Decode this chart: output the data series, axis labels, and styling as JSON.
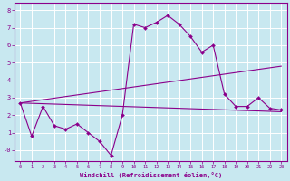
{
  "xlabel": "Windchill (Refroidissement éolien,°C)",
  "x_values": [
    0,
    1,
    2,
    3,
    4,
    5,
    6,
    7,
    8,
    9,
    10,
    11,
    12,
    13,
    14,
    15,
    16,
    17,
    18,
    19,
    20,
    21,
    22,
    23
  ],
  "line_main_y": [
    2.7,
    0.8,
    2.5,
    1.4,
    1.2,
    1.5,
    1.0,
    0.5,
    -0.3,
    2.0,
    7.2,
    7.0,
    7.3,
    7.7,
    7.2,
    6.5,
    5.6,
    6.0,
    3.2,
    2.5,
    2.5,
    3.0,
    2.4,
    2.3
  ],
  "trend1_x": [
    0,
    23
  ],
  "trend1_y": [
    2.7,
    4.8
  ],
  "trend2_x": [
    0,
    23
  ],
  "trend2_y": [
    2.7,
    2.2
  ],
  "line_color": "#8B008B",
  "bg_color": "#c8e8f0",
  "grid_color": "#ffffff",
  "ylim": [
    -0.6,
    8.4
  ],
  "xlim": [
    -0.5,
    23.5
  ],
  "yticks": [
    0,
    1,
    2,
    3,
    4,
    5,
    6,
    7,
    8
  ],
  "xticks": [
    0,
    1,
    2,
    3,
    4,
    5,
    6,
    7,
    8,
    9,
    10,
    11,
    12,
    13,
    14,
    15,
    16,
    17,
    18,
    19,
    20,
    21,
    22,
    23
  ]
}
